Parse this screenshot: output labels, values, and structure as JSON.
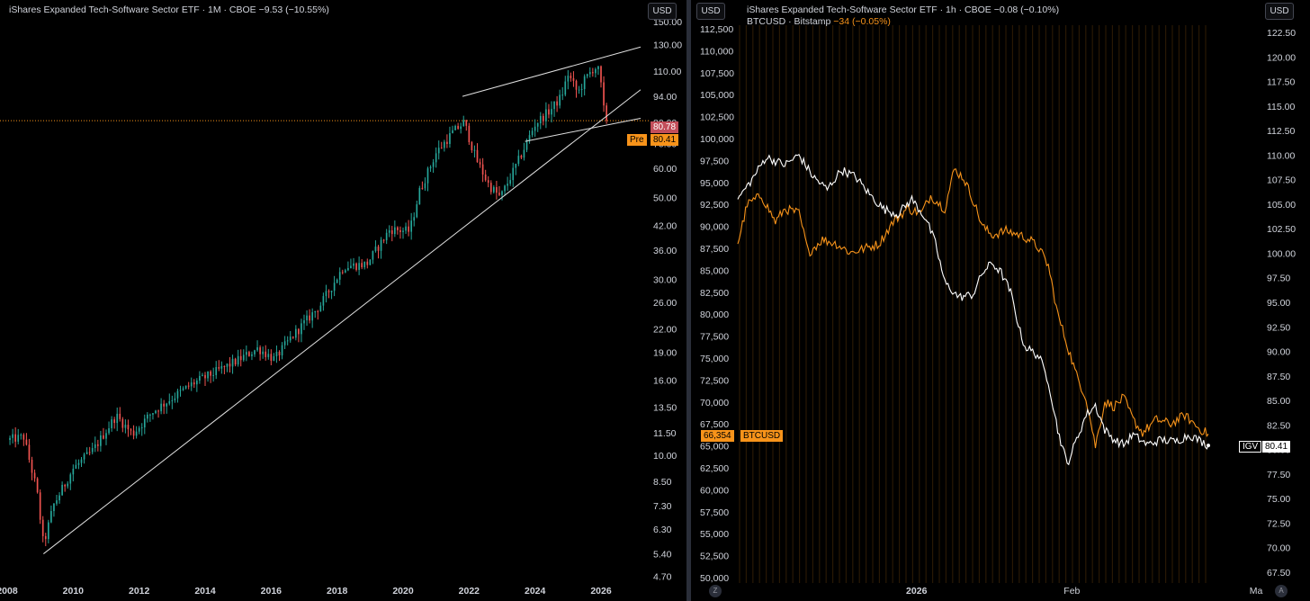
{
  "left": {
    "legend": {
      "title": "iShares Expanded Tech-Software Sector ETF · 1M · CBOE",
      "change": "−9.53 (−10.55%)"
    },
    "currency_button": "USD",
    "tags": {
      "last_price": "80.78",
      "pre_label": "Pre",
      "pre_price": "80.41"
    },
    "colors": {
      "up": "#26a69a",
      "down": "#ef5350",
      "lines": "#e0e0e0",
      "dotted": "#f7931a"
    }
  },
  "right": {
    "legend": {
      "title": "iShares Expanded Tech-Software Sector ETF · 1h · CBOE",
      "change": "−0.08 (−0.10%)",
      "series2": "BTCUSD · Bitstamp",
      "series2_change": "−34 (−0.05%)"
    },
    "currency_left": "USD",
    "currency_right": "USD",
    "tags": {
      "btc_value": "66,354",
      "btc_label": "BTCUSD",
      "igv_label": "IGV",
      "igv_value": "80.41"
    },
    "bottom_buttons": {
      "zoom": "Z",
      "auto": "A"
    },
    "colors": {
      "igv": "#ffffff",
      "btc": "#f7931a"
    }
  },
  "chart_data": [
    {
      "type": "candlestick",
      "title": "iShares Expanded Tech-Software Sector ETF",
      "interval": "1M",
      "y_scale": "log",
      "ylim": [
        4.5,
        150
      ],
      "y_ticks": [
        "150.00",
        "130.00",
        "110.00",
        "94.00",
        "80.00",
        "70.00",
        "60.00",
        "50.00",
        "42.00",
        "36.00",
        "30.00",
        "26.00",
        "22.00",
        "19.00",
        "16.00",
        "13.50",
        "11.50",
        "10.00",
        "8.50",
        "7.30",
        "6.30",
        "5.40",
        "4.70"
      ],
      "x_ticks": [
        "2008",
        "2010",
        "2012",
        "2014",
        "2016",
        "2018",
        "2020",
        "2022",
        "2024",
        "2026"
      ],
      "xlim": [
        2008.0,
        2027.2
      ],
      "last_price": 80.78,
      "pre_market_price": 80.41,
      "anchors": [
        [
          2008.0,
          11.0
        ],
        [
          2008.5,
          11.2
        ],
        [
          2008.9,
          8.0
        ],
        [
          2009.1,
          5.7
        ],
        [
          2009.4,
          7.3
        ],
        [
          2010.0,
          9.2
        ],
        [
          2010.6,
          10.3
        ],
        [
          2011.3,
          12.8
        ],
        [
          2011.8,
          11.4
        ],
        [
          2012.4,
          13.1
        ],
        [
          2013.0,
          14.3
        ],
        [
          2013.6,
          15.6
        ],
        [
          2014.2,
          16.6
        ],
        [
          2014.9,
          17.9
        ],
        [
          2015.6,
          19.5
        ],
        [
          2016.1,
          18.2
        ],
        [
          2016.6,
          20.8
        ],
        [
          2017.5,
          25.6
        ],
        [
          2018.2,
          32.5
        ],
        [
          2018.9,
          33.0
        ],
        [
          2019.6,
          41.0
        ],
        [
          2020.2,
          40.5
        ],
        [
          2020.5,
          52.0
        ],
        [
          2021.0,
          66.0
        ],
        [
          2021.5,
          75.0
        ],
        [
          2021.85,
          80.0
        ],
        [
          2022.2,
          64.0
        ],
        [
          2022.6,
          54.0
        ],
        [
          2022.95,
          50.0
        ],
        [
          2023.5,
          63.0
        ],
        [
          2024.0,
          79.0
        ],
        [
          2024.5,
          87.0
        ],
        [
          2024.8,
          94.0
        ],
        [
          2025.0,
          108.0
        ],
        [
          2025.3,
          96.0
        ],
        [
          2025.5,
          104.0
        ],
        [
          2025.8,
          113.0
        ],
        [
          2025.95,
          110.0
        ],
        [
          2026.1,
          84.0
        ],
        [
          2026.15,
          80.78
        ]
      ],
      "trendlines": [
        {
          "from": [
            2009.1,
            5.4
          ],
          "to": [
            2027.2,
            98.0
          ]
        },
        {
          "from": [
            2021.8,
            94.0
          ],
          "to": [
            2027.2,
            128.0
          ]
        },
        {
          "from": [
            2023.7,
            71.0
          ],
          "to": [
            2027.2,
            82.0
          ]
        }
      ]
    },
    {
      "type": "line",
      "interval": "1h",
      "x_ticks": [
        "2026",
        "Feb",
        "Ma"
      ],
      "btc_axis": {
        "ylim": [
          50000,
          112500
        ],
        "ticks": [
          "112,500",
          "110,000",
          "107,500",
          "105,000",
          "102,500",
          "100,000",
          "97,500",
          "95,000",
          "92,500",
          "90,000",
          "87,500",
          "85,000",
          "82,500",
          "80,000",
          "77,500",
          "75,000",
          "72,500",
          "70,000",
          "67,500",
          "65,000",
          "62,500",
          "60,000",
          "57,500",
          "55,000",
          "52,500",
          "50,000"
        ]
      },
      "igv_axis": {
        "ylim": [
          67.5,
          122.5
        ],
        "ticks": [
          "122.50",
          "120.00",
          "117.50",
          "115.00",
          "112.50",
          "110.00",
          "107.50",
          "105.00",
          "102.50",
          "100.00",
          "97.50",
          "95.00",
          "92.50",
          "90.00",
          "87.50",
          "85.00",
          "82.50",
          "80.00",
          "77.50",
          "75.00",
          "72.50",
          "70.00",
          "67.50"
        ]
      },
      "series": [
        {
          "name": "IGV",
          "axis": "igv",
          "points": [
            [
              0.0,
              105.5
            ],
            [
              0.03,
              107.5
            ],
            [
              0.06,
              109.8
            ],
            [
              0.1,
              109.0
            ],
            [
              0.13,
              110.0
            ],
            [
              0.16,
              107.8
            ],
            [
              0.19,
              106.5
            ],
            [
              0.22,
              108.5
            ],
            [
              0.25,
              107.8
            ],
            [
              0.28,
              106.0
            ],
            [
              0.31,
              104.5
            ],
            [
              0.34,
              104.0
            ],
            [
              0.37,
              105.5
            ],
            [
              0.4,
              103.5
            ],
            [
              0.42,
              101.0
            ],
            [
              0.44,
              97.0
            ],
            [
              0.47,
              95.5
            ],
            [
              0.5,
              95.8
            ],
            [
              0.52,
              98.0
            ],
            [
              0.54,
              99.0
            ],
            [
              0.56,
              98.0
            ],
            [
              0.58,
              96.0
            ],
            [
              0.6,
              92.0
            ],
            [
              0.61,
              90.5
            ],
            [
              0.64,
              89.5
            ],
            [
              0.66,
              87.0
            ],
            [
              0.68,
              82.0
            ],
            [
              0.7,
              78.5
            ],
            [
              0.72,
              81.0
            ],
            [
              0.74,
              83.5
            ],
            [
              0.76,
              84.5
            ],
            [
              0.78,
              82.0
            ],
            [
              0.8,
              81.0
            ],
            [
              0.82,
              80.5
            ],
            [
              0.84,
              81.5
            ],
            [
              0.87,
              80.5
            ],
            [
              0.9,
              81.0
            ],
            [
              0.93,
              80.8
            ],
            [
              0.96,
              81.5
            ],
            [
              1.0,
              80.41
            ]
          ]
        },
        {
          "name": "BTCUSD",
          "axis": "btc",
          "points": [
            [
              0.0,
              88000
            ],
            [
              0.02,
              92500
            ],
            [
              0.05,
              93500
            ],
            [
              0.08,
              90500
            ],
            [
              0.1,
              92000
            ],
            [
              0.13,
              91500
            ],
            [
              0.15,
              87000
            ],
            [
              0.18,
              88500
            ],
            [
              0.21,
              88000
            ],
            [
              0.24,
              87000
            ],
            [
              0.27,
              87500
            ],
            [
              0.3,
              88000
            ],
            [
              0.33,
              90500
            ],
            [
              0.36,
              92000
            ],
            [
              0.39,
              91500
            ],
            [
              0.41,
              93500
            ],
            [
              0.44,
              92000
            ],
            [
              0.46,
              96500
            ],
            [
              0.48,
              95500
            ],
            [
              0.5,
              93000
            ],
            [
              0.52,
              90000
            ],
            [
              0.54,
              89000
            ],
            [
              0.57,
              89500
            ],
            [
              0.6,
              89000
            ],
            [
              0.62,
              88500
            ],
            [
              0.64,
              87500
            ],
            [
              0.66,
              85500
            ],
            [
              0.68,
              80000
            ],
            [
              0.7,
              76500
            ],
            [
              0.72,
              73000
            ],
            [
              0.74,
              70500
            ],
            [
              0.76,
              65000
            ],
            [
              0.78,
              70000
            ],
            [
              0.8,
              69500
            ],
            [
              0.82,
              70500
            ],
            [
              0.84,
              68000
            ],
            [
              0.86,
              66500
            ],
            [
              0.89,
              68000
            ],
            [
              0.92,
              67500
            ],
            [
              0.95,
              68500
            ],
            [
              0.98,
              67000
            ],
            [
              1.0,
              66354
            ]
          ]
        }
      ]
    }
  ]
}
